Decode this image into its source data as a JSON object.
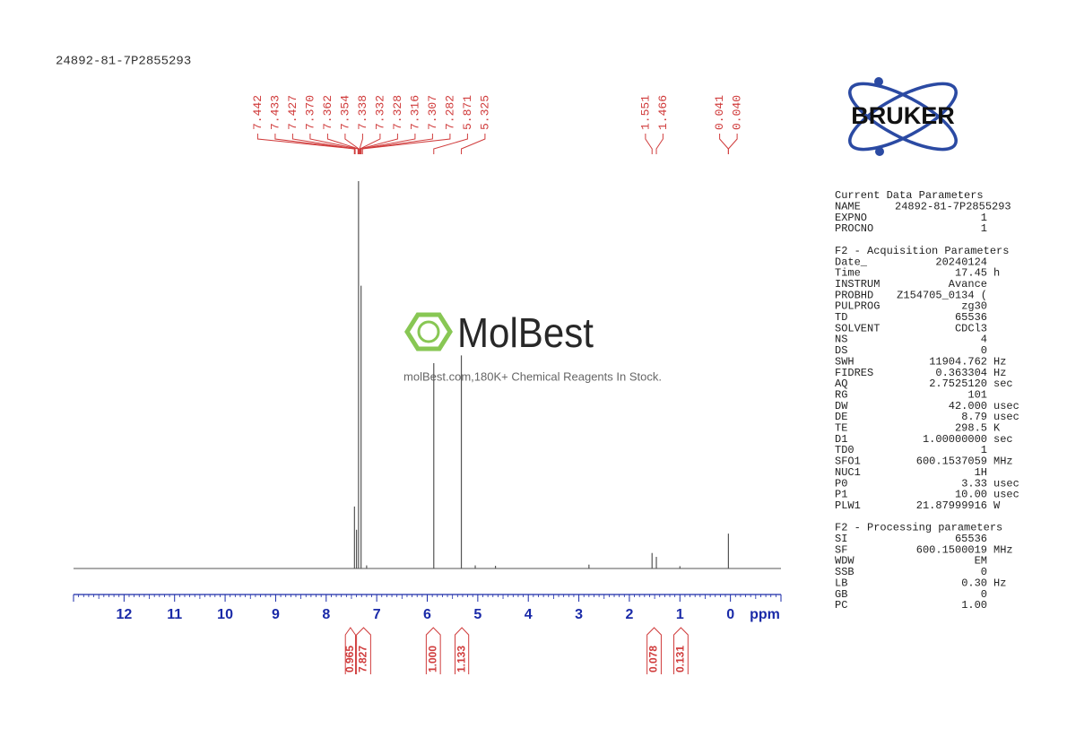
{
  "sample_id": "24892-81-7P2855293",
  "logo": {
    "brand": "BRUKER"
  },
  "watermark": {
    "name": "MolBest",
    "tagline": "molBest.com,180K+ Chemical Reagents In Stock."
  },
  "chart_data": {
    "type": "nmr",
    "x_label": "ppm",
    "xlim": [
      13,
      -1
    ],
    "xticks": [
      12,
      11,
      10,
      9,
      8,
      7,
      6,
      5,
      4,
      3,
      2,
      1,
      0
    ],
    "ylim": [
      0,
      100
    ],
    "color": "#555555",
    "label_color": "#d03c3c",
    "signals": {
      "ppm": [
        7.44,
        7.4,
        7.36,
        7.31,
        7.2,
        5.871,
        5.325,
        5.05,
        4.65,
        2.8,
        1.551,
        1.466,
        1.0,
        0.04
      ],
      "height": [
        16,
        10,
        100,
        73,
        0.8,
        53,
        55,
        0.8,
        0.7,
        1,
        4,
        3,
        0.6,
        9
      ]
    },
    "peak_labels": [
      7.442,
      7.433,
      7.427,
      {
        "value": 7.37,
        "label": "7.370"
      },
      7.362,
      7.354,
      7.338,
      7.332,
      7.328,
      7.316,
      7.307,
      7.282,
      5.871,
      5.325,
      1.551,
      1.466,
      0.041,
      {
        "value": 0.04,
        "label": "0.040"
      }
    ],
    "integrals": [
      {
        "value": 0.965,
        "range": [
          7.62,
          7.42
        ]
      },
      {
        "value": 7.827,
        "range": [
          7.4,
          7.12
        ]
      },
      {
        "value": 1,
        "label": "1.000",
        "range": [
          6.02,
          5.74
        ]
      },
      {
        "value": 1.133,
        "range": [
          5.45,
          5.18
        ]
      },
      {
        "value": 0.078,
        "range": [
          1.65,
          1.37
        ]
      },
      {
        "value": 0.131,
        "range": [
          1.12,
          0.84
        ]
      }
    ]
  },
  "parameters": [
    {
      "title": "Current Data Parameters",
      "rows": [
        [
          "NAME",
          "24892-81-7P2855293"
        ],
        [
          "EXPNO",
          "1"
        ],
        [
          "PROCNO",
          "1"
        ]
      ]
    },
    {
      "title": "F2 - Acquisition Parameters",
      "rows": [
        [
          "Date_",
          "20240124"
        ],
        [
          "Time",
          "17.45",
          "h"
        ],
        [
          "INSTRUM",
          "Avance"
        ],
        [
          "PROBHD",
          "Z154705_0134 ("
        ],
        [
          "PULPROG",
          "zg30"
        ],
        [
          "TD",
          "65536"
        ],
        [
          "SOLVENT",
          "CDCl3"
        ],
        [
          "NS",
          "4"
        ],
        [
          "DS",
          "0"
        ],
        [
          "SWH",
          "11904.762",
          "Hz"
        ],
        [
          "FIDRES",
          "0.363304",
          "Hz"
        ],
        [
          "AQ",
          "2.7525120",
          "sec"
        ],
        [
          "RG",
          "101"
        ],
        [
          "DW",
          "42.000",
          "usec"
        ],
        [
          "DE",
          "8.79",
          "usec"
        ],
        [
          "TE",
          "298.5",
          "K"
        ],
        [
          "D1",
          "1.00000000",
          "sec"
        ],
        [
          "TD0",
          "1"
        ],
        [
          "SFO1",
          "600.1537059",
          "MHz"
        ],
        [
          "NUC1",
          "1H"
        ],
        [
          "P0",
          "3.33",
          "usec"
        ],
        [
          "P1",
          "10.00",
          "usec"
        ],
        [
          "PLW1",
          "21.87999916",
          "W"
        ]
      ]
    },
    {
      "title": "F2 - Processing parameters",
      "rows": [
        [
          "SI",
          "65536"
        ],
        [
          "SF",
          "600.1500019",
          "MHz"
        ],
        [
          "WDW",
          "EM"
        ],
        [
          "SSB",
          "0"
        ],
        [
          "LB",
          "0.30",
          "Hz"
        ],
        [
          "GB",
          "0"
        ],
        [
          "PC",
          "1.00"
        ]
      ]
    }
  ]
}
